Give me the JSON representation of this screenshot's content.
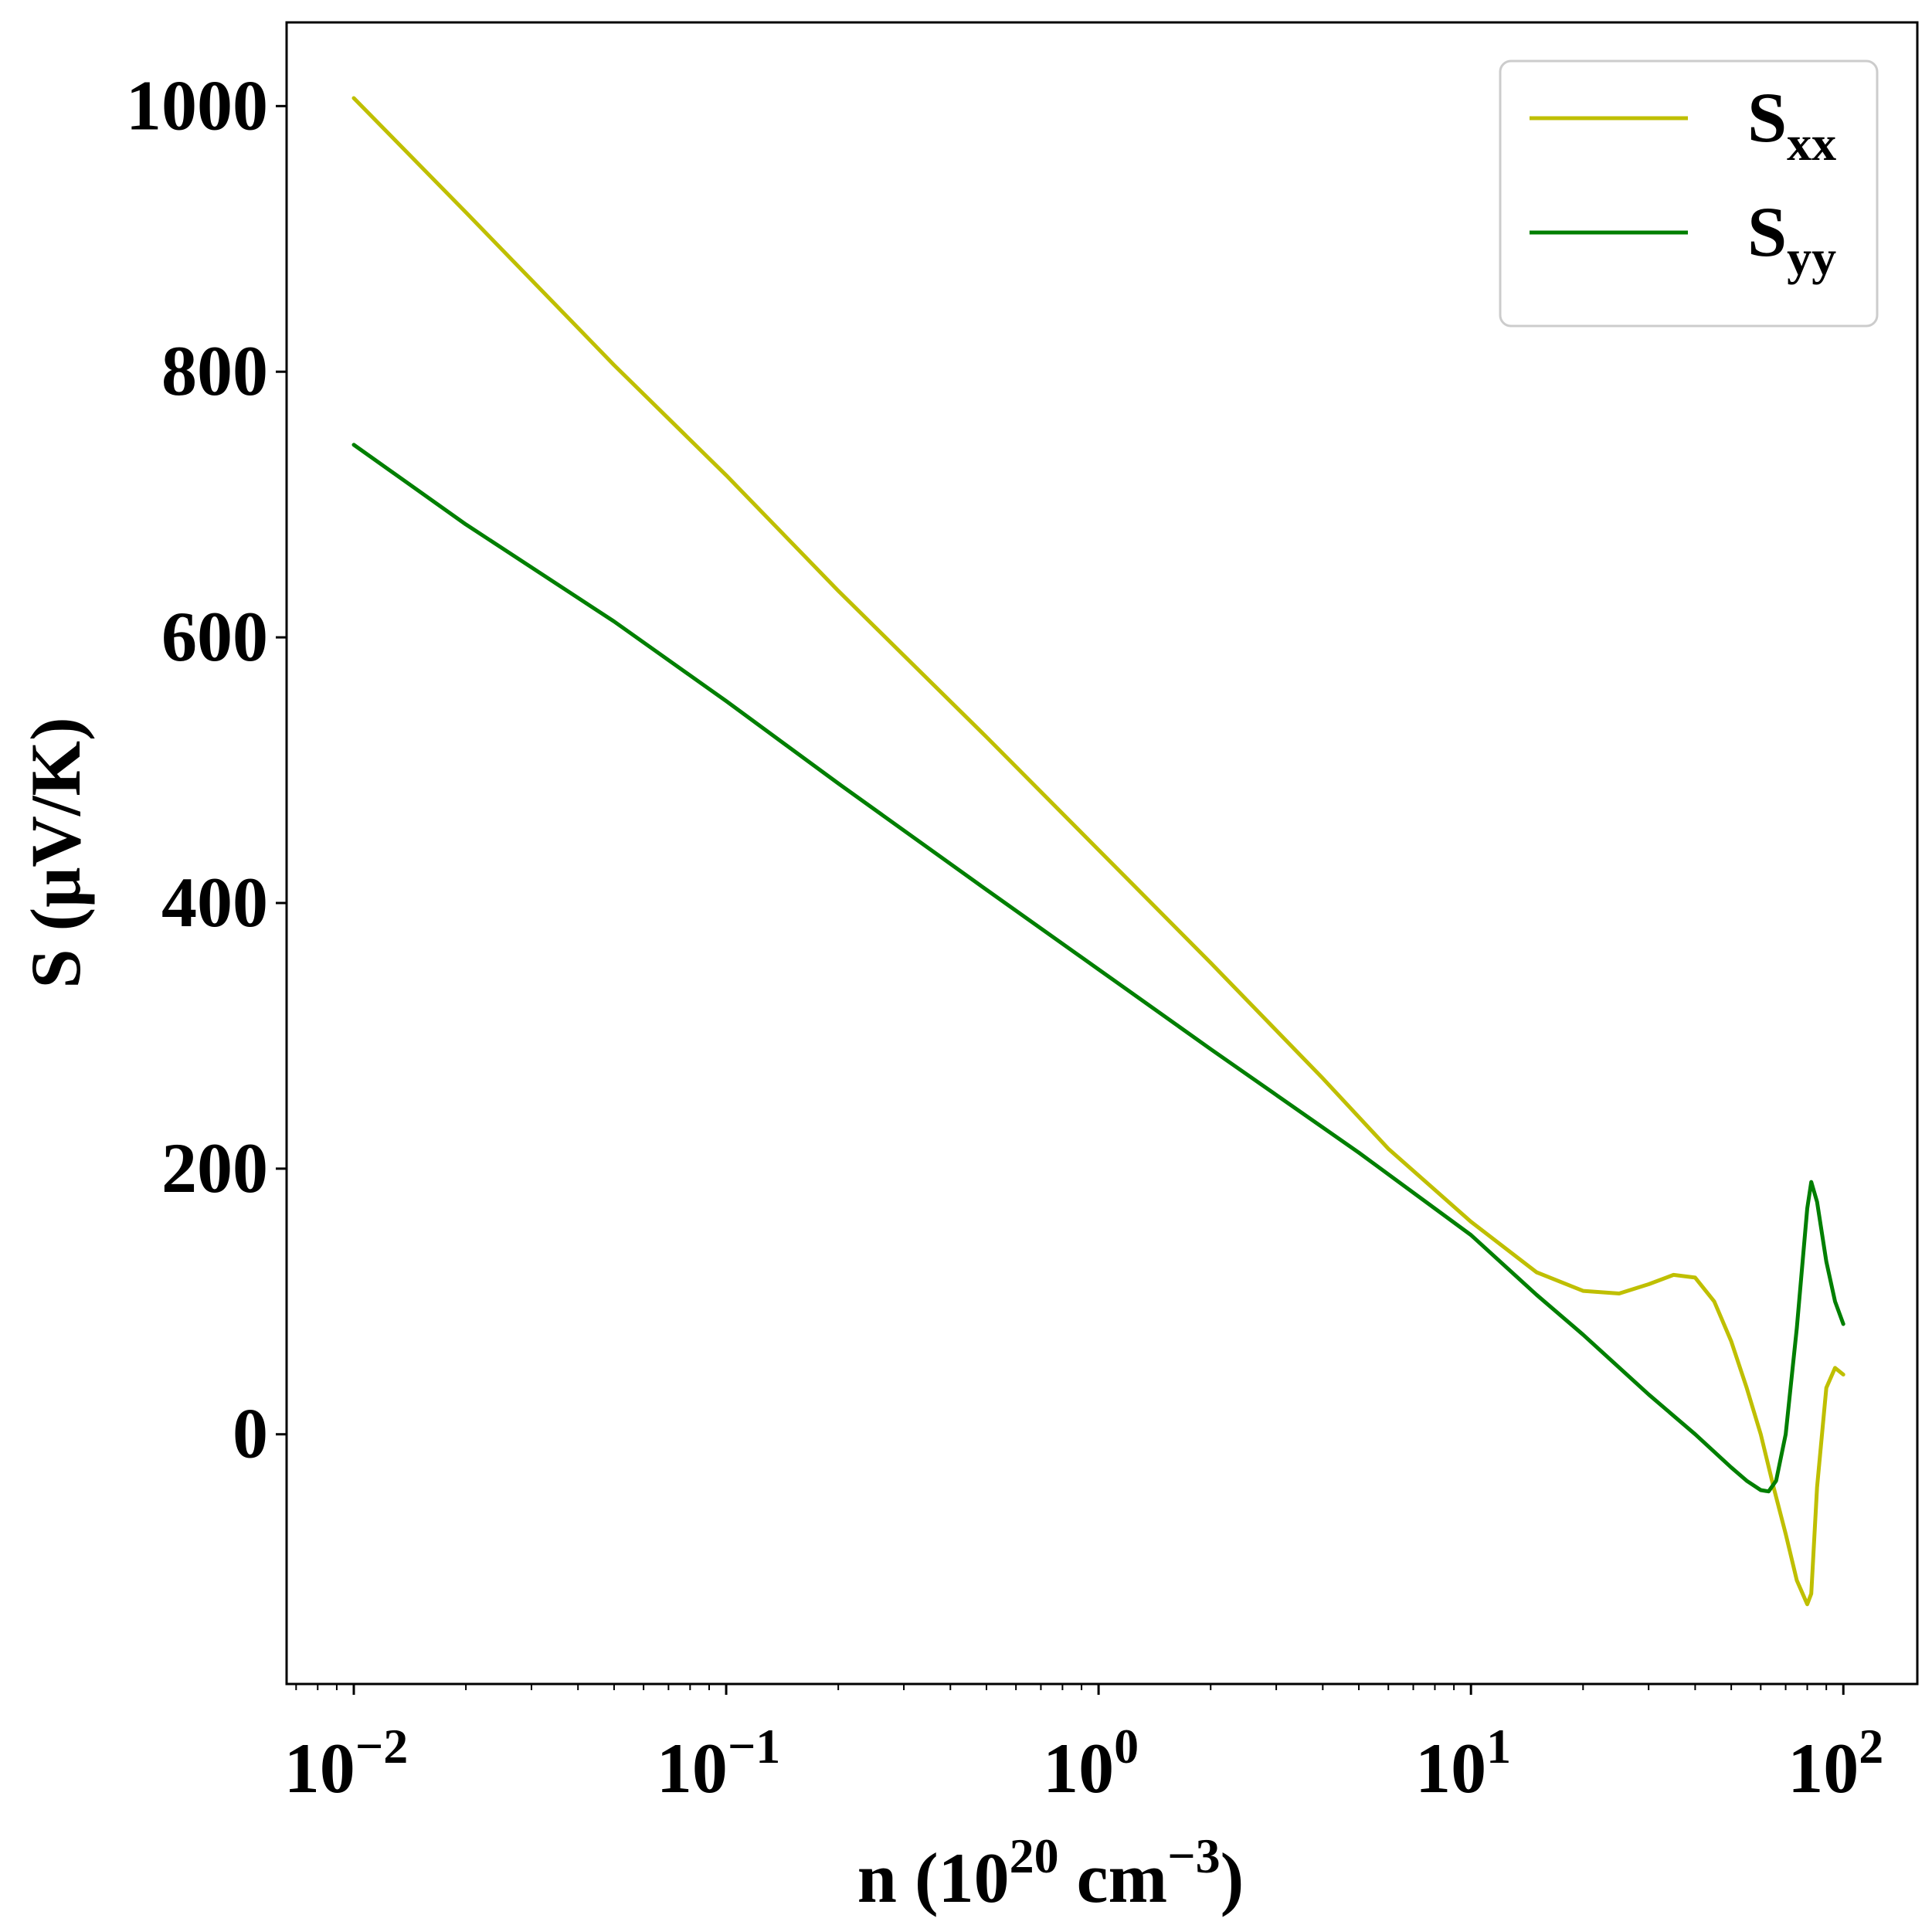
{
  "chart_data": {
    "type": "line",
    "title": "",
    "xlabel": "n (10",
    "xlabel_sup": "20",
    "xlabel_mid": " cm",
    "xlabel_sup2": "−3",
    "xlabel_end": ")",
    "ylabel": "S (μV/K)",
    "x_scale": "log",
    "xlim": [
      0.0066,
      158
    ],
    "ylim": [
      -188,
      1063
    ],
    "x_ticks": [
      {
        "value": 0.01,
        "base": "10",
        "exp": "−2"
      },
      {
        "value": 0.1,
        "base": "10",
        "exp": "−1"
      },
      {
        "value": 1,
        "base": "10",
        "exp": "0"
      },
      {
        "value": 10,
        "base": "10",
        "exp": "1"
      },
      {
        "value": 100,
        "base": "10",
        "exp": "2"
      }
    ],
    "y_ticks": [
      {
        "value": 0,
        "label": "0"
      },
      {
        "value": 200,
        "label": "200"
      },
      {
        "value": 400,
        "label": "400"
      },
      {
        "value": 600,
        "label": "600"
      },
      {
        "value": 800,
        "label": "800"
      },
      {
        "value": 1000,
        "label": "1000"
      }
    ],
    "grid": false,
    "legend_position": "top-right",
    "series": [
      {
        "name_main": "S",
        "name_sub": "xx",
        "color": "#bfbf00",
        "x": [
          0.01,
          0.02,
          0.05,
          0.1,
          0.2,
          0.5,
          1,
          2,
          4,
          6,
          10,
          15,
          20,
          25,
          30,
          35,
          40,
          45,
          50,
          55,
          60,
          65,
          70,
          75,
          80,
          82,
          85,
          90,
          95,
          100
        ],
        "y": [
          1006,
          920,
          805,
          722,
          635,
          525,
          440,
          355,
          268,
          215,
          160,
          122,
          108,
          106,
          113,
          120,
          118,
          100,
          70,
          35,
          0,
          -40,
          -75,
          -110,
          -128,
          -120,
          -40,
          35,
          50,
          45
        ]
      },
      {
        "name_main": "S",
        "name_sub": "yy",
        "color": "#007f00",
        "x": [
          0.01,
          0.02,
          0.05,
          0.1,
          0.2,
          0.5,
          1,
          2,
          5,
          10,
          15,
          20,
          30,
          40,
          50,
          55,
          60,
          63,
          66,
          70,
          75,
          80,
          82,
          85,
          90,
          95,
          100
        ],
        "y": [
          745,
          685,
          612,
          552,
          490,
          410,
          350,
          290,
          212,
          150,
          105,
          75,
          30,
          0,
          -25,
          -35,
          -42,
          -43,
          -35,
          0,
          80,
          170,
          190,
          175,
          130,
          100,
          83
        ]
      }
    ]
  }
}
